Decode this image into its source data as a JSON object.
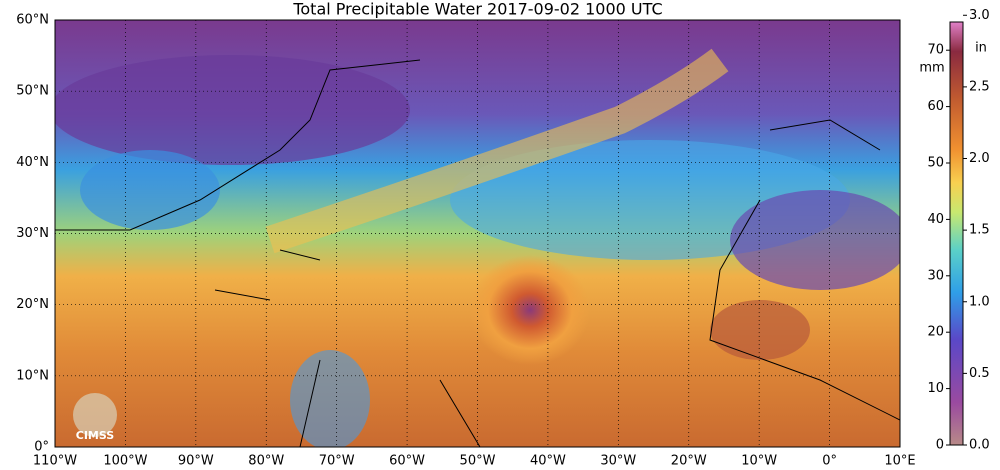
{
  "title": "Total Precipitable Water  2017-09-02 1000 UTC",
  "lat_labels": [
    "60°N",
    "50°N",
    "40°N",
    "30°N",
    "20°N",
    "10°N",
    "0°"
  ],
  "lon_labels": [
    "110°W",
    "100°W",
    "90°W",
    "80°W",
    "70°W",
    "60°W",
    "50°W",
    "40°W",
    "30°W",
    "20°W",
    "10°W",
    "0°",
    "10°E"
  ],
  "colorbar": {
    "mm_unit": "mm",
    "in_unit": "in",
    "mm_lim": [
      0,
      75
    ],
    "mm_ticks": [
      0,
      10,
      20,
      30,
      40,
      50,
      60,
      70
    ],
    "in_lim": [
      0,
      2.953
    ],
    "in_ticks": [
      {
        "value": 0,
        "label": "0.0"
      },
      0.5,
      {
        "value": 1,
        "label": "1.0"
      },
      1.5,
      {
        "value": 2,
        "label": "2.0"
      },
      2.5,
      {
        "value": 3,
        "label": "3.0"
      }
    ]
  },
  "logo": "CIMSS"
}
